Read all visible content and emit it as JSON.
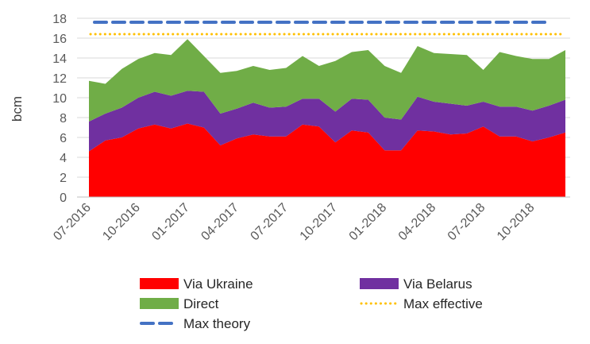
{
  "chart_data": {
    "type": "area",
    "title": "",
    "xlabel": "",
    "ylabel": "bcm",
    "ylim": [
      0,
      18
    ],
    "yticks": [
      0,
      2,
      4,
      6,
      8,
      10,
      12,
      14,
      16,
      18
    ],
    "grid": true,
    "legend_position": "bottom",
    "x_start": "07-2016",
    "x_end": "01-2019",
    "x_tick_labels": [
      "07-2016",
      "10-2016",
      "01-2017",
      "04-2017",
      "07-2017",
      "10-2017",
      "01-2018",
      "04-2018",
      "07-2018",
      "10-2018"
    ],
    "series": [
      {
        "name": "Via Ukraine",
        "kind": "stacked-area",
        "color": "#ff0000",
        "values": [
          4.6,
          5.7,
          6.0,
          6.9,
          7.3,
          6.9,
          7.4,
          7.0,
          5.2,
          5.9,
          6.3,
          6.1,
          6.1,
          7.3,
          7.1,
          5.5,
          6.7,
          6.5,
          4.7,
          4.7,
          6.7,
          6.6,
          6.3,
          6.4,
          7.1,
          6.1,
          6.1,
          5.6,
          6.0,
          6.5
        ]
      },
      {
        "name": "Via Belarus",
        "kind": "stacked-area",
        "color": "#7030a0",
        "values": [
          3.0,
          2.7,
          3.0,
          3.1,
          3.3,
          3.3,
          3.3,
          3.6,
          3.2,
          3.0,
          3.2,
          2.9,
          3.0,
          2.6,
          2.8,
          3.1,
          3.2,
          3.3,
          3.3,
          3.1,
          3.4,
          3.0,
          3.1,
          2.8,
          2.5,
          3.0,
          3.0,
          3.1,
          3.2,
          3.3
        ]
      },
      {
        "name": "Direct",
        "kind": "stacked-area",
        "color": "#70ad47",
        "values": [
          4.1,
          3.0,
          3.9,
          3.9,
          3.9,
          4.1,
          5.2,
          3.6,
          4.1,
          3.8,
          3.7,
          3.8,
          3.9,
          4.3,
          3.3,
          5.1,
          4.7,
          5.0,
          5.2,
          4.7,
          5.1,
          4.9,
          5.0,
          5.1,
          3.2,
          5.5,
          5.1,
          5.2,
          4.7,
          5.0
        ]
      },
      {
        "name": "Max effective",
        "kind": "line",
        "style": "dotted",
        "color": "#ffc000",
        "value": 16.4
      },
      {
        "name": "Max theory",
        "kind": "line",
        "style": "dashed",
        "color": "#4472c4",
        "value": 17.6
      }
    ]
  }
}
